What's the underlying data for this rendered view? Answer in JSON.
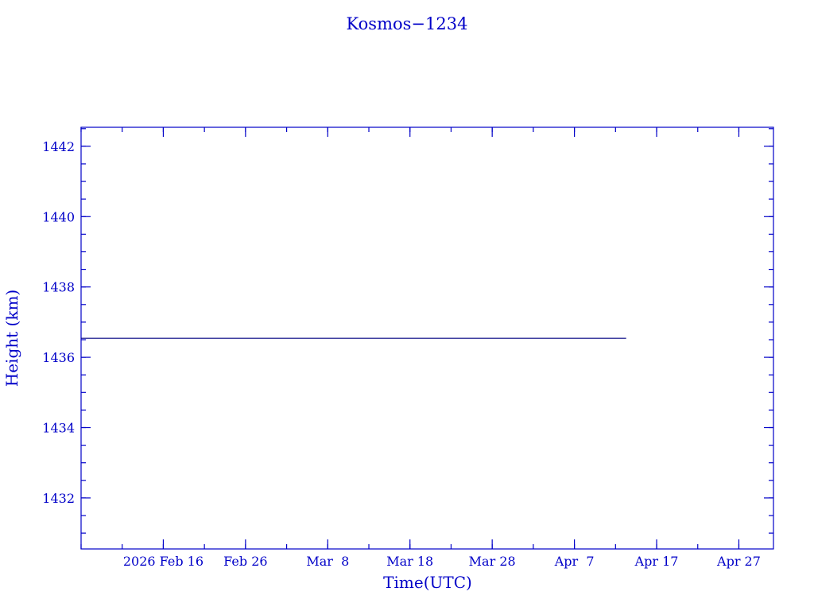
{
  "chart_data": {
    "type": "line",
    "title": "Kosmos−1234",
    "xlabel": "Time(UTC)",
    "ylabel": "Height (km)",
    "xlim": [
      "2026-02-06",
      "2026-05-01T05:00"
    ],
    "ylim": [
      1430.55,
      1442.54
    ],
    "x_ticks": [
      {
        "date": "2026-02-16",
        "label": "2026 Feb 16"
      },
      {
        "date": "2026-02-26",
        "label": "Feb 26"
      },
      {
        "date": "2026-03-08",
        "label": "Mar  8"
      },
      {
        "date": "2026-03-18",
        "label": "Mar 18"
      },
      {
        "date": "2026-03-28",
        "label": "Mar 28"
      },
      {
        "date": "2026-04-07",
        "label": "Apr  7"
      },
      {
        "date": "2026-04-17",
        "label": "Apr 17"
      },
      {
        "date": "2026-04-27",
        "label": "Apr 27"
      }
    ],
    "y_ticks": [
      1432,
      1434,
      1436,
      1438,
      1440,
      1442
    ],
    "y_minor_step": 0.5,
    "x_minor_step_days": 5,
    "grid": false,
    "series": [
      {
        "x": [
          "2026-02-06",
          "2026-04-13T07:00"
        ],
        "y": [
          1436.54,
          1436.54
        ],
        "color": "#000080"
      }
    ],
    "axis_color": "#0000c8"
  }
}
